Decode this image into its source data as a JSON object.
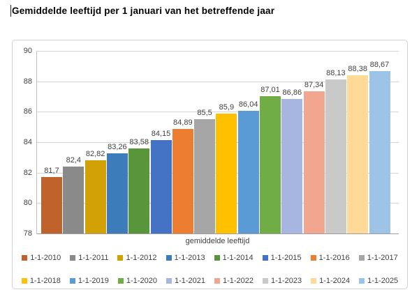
{
  "page": {
    "title": "Gemiddelde leeftijd per 1 januari van het betreffende jaar"
  },
  "chart_data": {
    "type": "bar",
    "title": "Gemiddelde leeftijd per 1 januari van het betreffende jaar",
    "xlabel": "gemiddelde leeftijd",
    "ylabel": "",
    "ylim": [
      78,
      90
    ],
    "yticks": [
      78,
      80,
      82,
      84,
      86,
      88,
      90
    ],
    "grid": true,
    "legend_position": "bottom",
    "legend_rows": 2,
    "categories": [
      "1-1-2010",
      "1-1-2011",
      "1-1-2012",
      "1-1-2013",
      "1-1-2014",
      "1-1-2015",
      "1-1-2016",
      "1-1-2017",
      "1-1-2018",
      "1-1-2019",
      "1-1-2020",
      "1-1-2021",
      "1-1-2022",
      "1-1-2023",
      "1-1-2024",
      "1-1-2025"
    ],
    "values": [
      81.7,
      82.4,
      82.82,
      83.26,
      83.58,
      84.15,
      84.89,
      85.5,
      85.9,
      86.04,
      87.01,
      86.86,
      87.34,
      88.13,
      88.38,
      88.67
    ],
    "value_labels": [
      "81,7",
      "82,4",
      "82,82",
      "83,26",
      "83,58",
      "84,15",
      "84,89",
      "85,5",
      "85,9",
      "86,04",
      "87,01",
      "86,86",
      "87,34",
      "88,13",
      "88,38",
      "88,67"
    ],
    "bar_colors": [
      "#C0622C",
      "#8A8A8A",
      "#D2A106",
      "#3D7CBA",
      "#58953B",
      "#4472C4",
      "#ED7D31",
      "#A6A6A6",
      "#FFC000",
      "#5B9BD5",
      "#70AD47",
      "#A7B6E0",
      "#F2A690",
      "#C9C9C9",
      "#FFD996",
      "#9DC3E6"
    ]
  },
  "colors": {
    "gridline": "#d4d4d4",
    "axis_line": "#9c9c9c",
    "text": "#404040",
    "frame_border": "#d2d2d2",
    "title_text": "#000000"
  }
}
